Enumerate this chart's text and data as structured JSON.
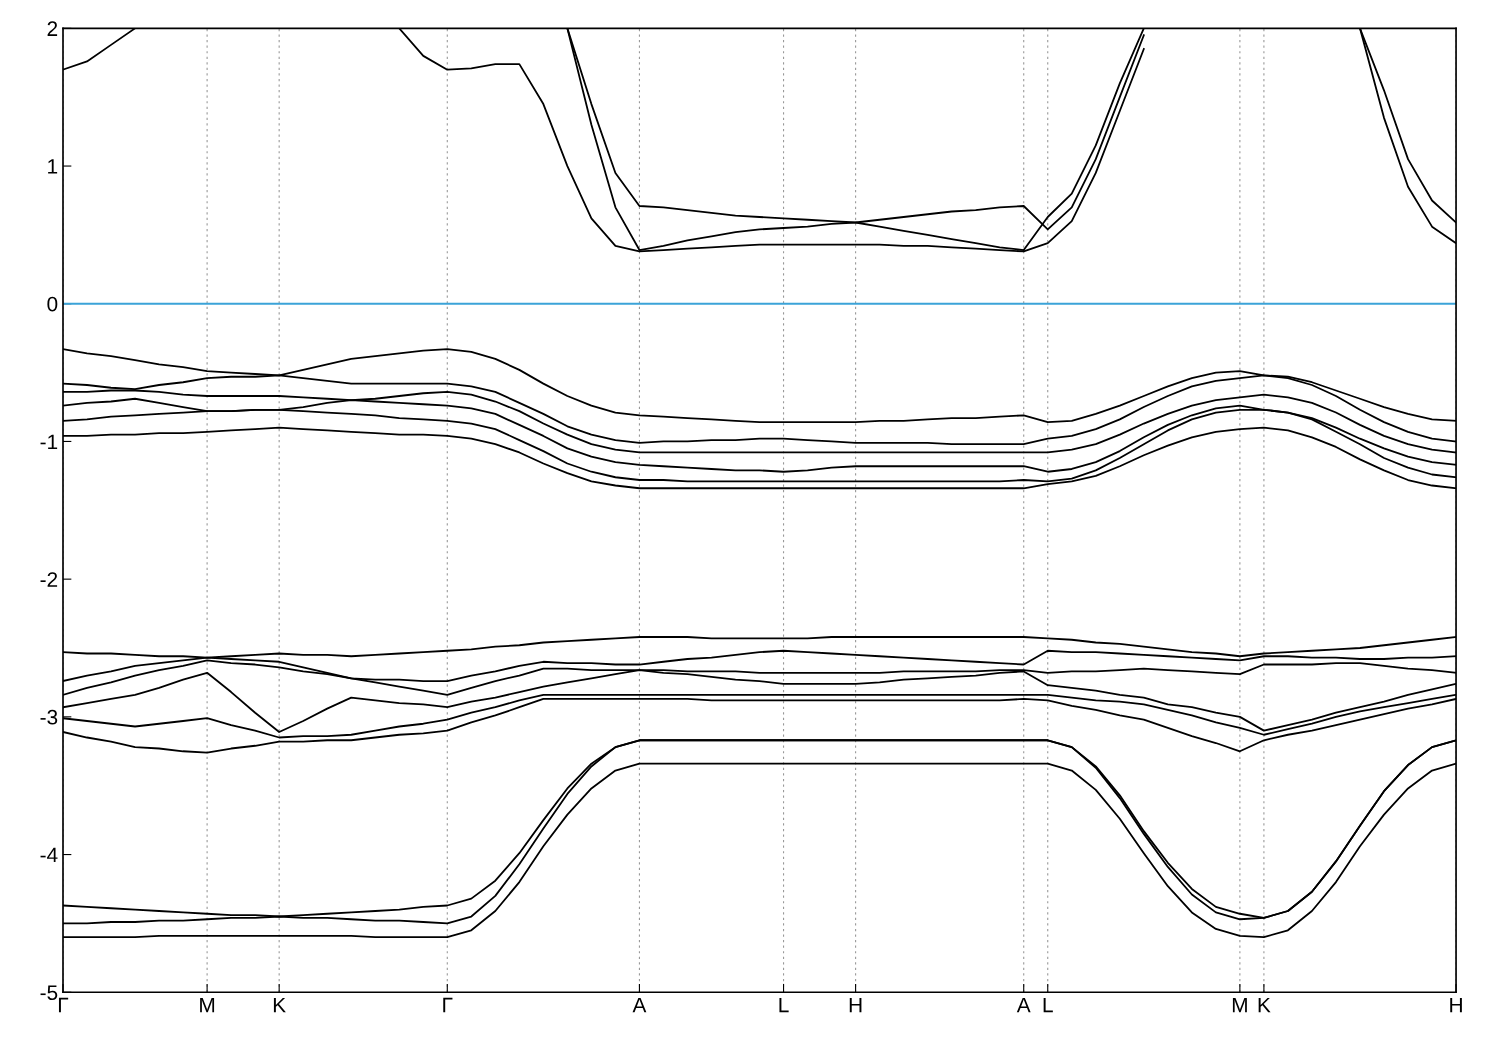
{
  "chart_data": {
    "type": "line",
    "categories": [
      "Γ",
      null,
      null,
      null,
      null,
      null,
      "M",
      null,
      null,
      "K",
      null,
      null,
      null,
      null,
      null,
      null,
      "Γ",
      null,
      null,
      null,
      null,
      null,
      null,
      null,
      "A",
      null,
      null,
      null,
      null,
      null,
      "L",
      null,
      null,
      "H",
      null,
      null,
      null,
      null,
      null,
      null,
      "A",
      "L",
      null,
      null,
      null,
      null,
      null,
      null,
      null,
      "M",
      "K",
      null,
      null,
      null,
      null,
      null,
      null,
      null,
      "H"
    ],
    "ylim": [
      -5,
      2
    ],
    "yticks": [
      -5,
      -4,
      -3,
      -2,
      -1,
      0,
      1,
      2
    ],
    "grid": "x",
    "line_style": "solid",
    "marker": "none",
    "ref_lines": [
      {
        "axis": "y",
        "value": 0,
        "color": "#3ba3d8"
      }
    ],
    "series": [
      {
        "color": "#000000",
        "values": [
          1.7,
          1.76,
          1.88,
          2.0,
          null,
          null,
          null,
          null,
          null,
          null,
          null,
          null,
          null,
          null,
          2.0,
          1.8,
          1.7,
          1.71,
          1.74,
          1.74,
          1.45,
          1.0,
          0.62,
          0.42,
          0.38,
          0.39,
          0.4,
          0.41,
          0.42,
          0.43,
          0.43,
          0.43,
          0.43,
          0.43,
          0.43,
          0.42,
          0.42,
          0.41,
          0.4,
          0.39,
          0.38,
          0.44,
          0.6,
          0.95,
          1.4,
          1.85,
          null,
          null,
          null,
          null,
          null,
          null,
          null,
          null,
          2.0,
          1.35,
          0.85,
          0.56,
          0.44
        ]
      },
      {
        "color": "#000000",
        "values": [
          null,
          null,
          null,
          null,
          null,
          null,
          null,
          null,
          null,
          null,
          null,
          null,
          null,
          null,
          null,
          null,
          null,
          null,
          null,
          null,
          null,
          2.0,
          1.3,
          0.7,
          0.39,
          0.42,
          0.46,
          0.49,
          0.52,
          0.54,
          0.55,
          0.56,
          0.58,
          0.59,
          0.61,
          0.63,
          0.65,
          0.67,
          0.68,
          0.7,
          0.71,
          0.54,
          0.7,
          1.05,
          1.5,
          1.95,
          null,
          null,
          null,
          null,
          null,
          null,
          null,
          null,
          2.0,
          1.55,
          1.05,
          0.75,
          0.59
        ]
      },
      {
        "color": "#000000",
        "values": [
          null,
          null,
          null,
          null,
          null,
          null,
          null,
          null,
          null,
          null,
          null,
          null,
          null,
          null,
          null,
          null,
          null,
          null,
          null,
          null,
          null,
          2.0,
          1.45,
          0.95,
          0.71,
          0.7,
          0.68,
          0.66,
          0.64,
          0.63,
          0.62,
          0.61,
          0.6,
          0.59,
          0.56,
          0.53,
          0.5,
          0.47,
          0.44,
          0.41,
          0.39,
          0.63,
          0.8,
          1.15,
          1.6,
          2.0,
          null,
          null,
          null,
          null,
          null,
          null,
          null,
          null,
          null,
          null,
          null,
          null,
          null
        ]
      },
      {
        "color": "#000000",
        "values": [
          -0.33,
          -0.36,
          -0.38,
          -0.41,
          -0.44,
          -0.46,
          -0.49,
          -0.5,
          -0.51,
          -0.52,
          -0.48,
          -0.44,
          -0.4,
          -0.38,
          -0.36,
          -0.34,
          -0.33,
          -0.35,
          -0.4,
          -0.48,
          -0.58,
          -0.67,
          -0.74,
          -0.79,
          -0.81,
          -0.82,
          -0.83,
          -0.84,
          -0.85,
          -0.86,
          -0.86,
          -0.86,
          -0.86,
          -0.86,
          -0.85,
          -0.85,
          -0.84,
          -0.83,
          -0.83,
          -0.82,
          -0.81,
          -0.86,
          -0.85,
          -0.8,
          -0.74,
          -0.67,
          -0.6,
          -0.54,
          -0.5,
          -0.49,
          -0.52,
          -0.53,
          -0.57,
          -0.63,
          -0.69,
          -0.75,
          -0.8,
          -0.84,
          -0.85
        ]
      },
      {
        "color": "#000000",
        "values": [
          -0.58,
          -0.59,
          -0.61,
          -0.62,
          -0.59,
          -0.57,
          -0.54,
          -0.53,
          -0.53,
          -0.52,
          -0.54,
          -0.56,
          -0.58,
          -0.58,
          -0.58,
          -0.58,
          -0.58,
          -0.6,
          -0.64,
          -0.72,
          -0.8,
          -0.89,
          -0.95,
          -0.99,
          -1.01,
          -1.0,
          -1.0,
          -0.99,
          -0.99,
          -0.98,
          -0.98,
          -0.99,
          -1.0,
          -1.01,
          -1.01,
          -1.01,
          -1.01,
          -1.02,
          -1.02,
          -1.02,
          -1.02,
          -0.98,
          -0.96,
          -0.91,
          -0.84,
          -0.75,
          -0.67,
          -0.6,
          -0.56,
          -0.54,
          -0.52,
          -0.54,
          -0.59,
          -0.67,
          -0.77,
          -0.86,
          -0.93,
          -0.98,
          -1.0
        ]
      },
      {
        "color": "#000000",
        "values": [
          -0.64,
          -0.64,
          -0.63,
          -0.63,
          -0.64,
          -0.66,
          -0.67,
          -0.67,
          -0.67,
          -0.67,
          -0.68,
          -0.69,
          -0.7,
          -0.69,
          -0.67,
          -0.65,
          -0.64,
          -0.66,
          -0.71,
          -0.78,
          -0.87,
          -0.95,
          -1.02,
          -1.06,
          -1.08,
          -1.08,
          -1.08,
          -1.08,
          -1.08,
          -1.08,
          -1.08,
          -1.08,
          -1.08,
          -1.08,
          -1.08,
          -1.08,
          -1.08,
          -1.08,
          -1.08,
          -1.08,
          -1.08,
          -1.08,
          -1.06,
          -1.02,
          -0.95,
          -0.87,
          -0.8,
          -0.74,
          -0.7,
          -0.68,
          -0.66,
          -0.68,
          -0.72,
          -0.79,
          -0.88,
          -0.96,
          -1.02,
          -1.06,
          -1.08
        ]
      },
      {
        "color": "#000000",
        "values": [
          -0.74,
          -0.72,
          -0.71,
          -0.69,
          -0.72,
          -0.75,
          -0.78,
          -0.78,
          -0.77,
          -0.77,
          -0.75,
          -0.72,
          -0.7,
          -0.71,
          -0.72,
          -0.73,
          -0.74,
          -0.76,
          -0.8,
          -0.88,
          -0.96,
          -1.05,
          -1.11,
          -1.15,
          -1.17,
          -1.18,
          -1.19,
          -1.2,
          -1.21,
          -1.21,
          -1.22,
          -1.21,
          -1.19,
          -1.18,
          -1.18,
          -1.18,
          -1.18,
          -1.18,
          -1.18,
          -1.18,
          -1.18,
          -1.22,
          -1.2,
          -1.15,
          -1.07,
          -0.97,
          -0.88,
          -0.81,
          -0.76,
          -0.74,
          -0.77,
          -0.79,
          -0.83,
          -0.9,
          -0.98,
          -1.05,
          -1.11,
          -1.15,
          -1.17
        ]
      },
      {
        "color": "#000000",
        "values": [
          -0.85,
          -0.84,
          -0.82,
          -0.81,
          -0.8,
          -0.79,
          -0.78,
          -0.78,
          -0.77,
          -0.77,
          -0.78,
          -0.79,
          -0.8,
          -0.81,
          -0.83,
          -0.84,
          -0.85,
          -0.87,
          -0.91,
          -0.99,
          -1.07,
          -1.16,
          -1.22,
          -1.26,
          -1.28,
          -1.28,
          -1.29,
          -1.29,
          -1.29,
          -1.29,
          -1.29,
          -1.29,
          -1.29,
          -1.29,
          -1.29,
          -1.29,
          -1.29,
          -1.29,
          -1.29,
          -1.29,
          -1.28,
          -1.29,
          -1.27,
          -1.21,
          -1.12,
          -1.02,
          -0.92,
          -0.84,
          -0.79,
          -0.77,
          -0.77,
          -0.79,
          -0.84,
          -0.93,
          -1.02,
          -1.12,
          -1.19,
          -1.24,
          -1.26
        ]
      },
      {
        "color": "#000000",
        "values": [
          -0.96,
          -0.96,
          -0.95,
          -0.95,
          -0.94,
          -0.94,
          -0.93,
          -0.92,
          -0.91,
          -0.9,
          -0.91,
          -0.92,
          -0.93,
          -0.94,
          -0.95,
          -0.95,
          -0.96,
          -0.98,
          -1.02,
          -1.08,
          -1.16,
          -1.23,
          -1.29,
          -1.32,
          -1.34,
          -1.34,
          -1.34,
          -1.34,
          -1.34,
          -1.34,
          -1.34,
          -1.34,
          -1.34,
          -1.34,
          -1.34,
          -1.34,
          -1.34,
          -1.34,
          -1.34,
          -1.34,
          -1.34,
          -1.31,
          -1.29,
          -1.25,
          -1.18,
          -1.1,
          -1.03,
          -0.97,
          -0.93,
          -0.91,
          -0.9,
          -0.92,
          -0.97,
          -1.04,
          -1.13,
          -1.21,
          -1.28,
          -1.32,
          -1.34
        ]
      },
      {
        "color": "#000000",
        "values": [
          -2.53,
          -2.54,
          -2.54,
          -2.55,
          -2.56,
          -2.56,
          -2.57,
          -2.56,
          -2.55,
          -2.54,
          -2.55,
          -2.55,
          -2.56,
          -2.55,
          -2.54,
          -2.53,
          -2.52,
          -2.51,
          -2.49,
          -2.48,
          -2.46,
          -2.45,
          -2.44,
          -2.43,
          -2.42,
          -2.42,
          -2.42,
          -2.43,
          -2.43,
          -2.43,
          -2.43,
          -2.43,
          -2.42,
          -2.42,
          -2.42,
          -2.42,
          -2.42,
          -2.42,
          -2.42,
          -2.42,
          -2.42,
          -2.43,
          -2.44,
          -2.46,
          -2.47,
          -2.49,
          -2.51,
          -2.53,
          -2.54,
          -2.56,
          -2.54,
          -2.53,
          -2.52,
          -2.51,
          -2.5,
          -2.48,
          -2.46,
          -2.44,
          -2.42
        ]
      },
      {
        "color": "#000000",
        "values": [
          -2.74,
          -2.7,
          -2.67,
          -2.63,
          -2.61,
          -2.59,
          -2.57,
          -2.58,
          -2.59,
          -2.6,
          -2.64,
          -2.68,
          -2.72,
          -2.73,
          -2.73,
          -2.74,
          -2.74,
          -2.7,
          -2.67,
          -2.63,
          -2.6,
          -2.61,
          -2.61,
          -2.62,
          -2.62,
          -2.6,
          -2.58,
          -2.57,
          -2.55,
          -2.53,
          -2.52,
          -2.53,
          -2.54,
          -2.55,
          -2.56,
          -2.57,
          -2.58,
          -2.59,
          -2.6,
          -2.61,
          -2.62,
          -2.52,
          -2.53,
          -2.53,
          -2.54,
          -2.55,
          -2.56,
          -2.57,
          -2.58,
          -2.59,
          -2.56,
          -2.56,
          -2.57,
          -2.57,
          -2.58,
          -2.58,
          -2.57,
          -2.57,
          -2.56
        ]
      },
      {
        "color": "#000000",
        "values": [
          -2.84,
          -2.79,
          -2.75,
          -2.7,
          -2.66,
          -2.63,
          -2.59,
          -2.61,
          -2.62,
          -2.64,
          -2.67,
          -2.69,
          -2.72,
          -2.75,
          -2.78,
          -2.81,
          -2.84,
          -2.79,
          -2.74,
          -2.7,
          -2.65,
          -2.65,
          -2.66,
          -2.66,
          -2.66,
          -2.66,
          -2.67,
          -2.67,
          -2.67,
          -2.68,
          -2.68,
          -2.68,
          -2.68,
          -2.68,
          -2.68,
          -2.67,
          -2.67,
          -2.67,
          -2.67,
          -2.66,
          -2.66,
          -2.68,
          -2.67,
          -2.67,
          -2.66,
          -2.65,
          -2.66,
          -2.67,
          -2.68,
          -2.69,
          -2.62,
          -2.62,
          -2.62,
          -2.61,
          -2.61,
          -2.63,
          -2.65,
          -2.66,
          -2.68
        ]
      },
      {
        "color": "#000000",
        "values": [
          -2.93,
          -2.9,
          -2.87,
          -2.84,
          -2.79,
          -2.73,
          -2.68,
          -2.82,
          -2.97,
          -3.11,
          -3.03,
          -2.94,
          -2.86,
          -2.88,
          -2.9,
          -2.91,
          -2.93,
          -2.89,
          -2.86,
          -2.82,
          -2.78,
          -2.75,
          -2.72,
          -2.69,
          -2.66,
          -2.68,
          -2.69,
          -2.71,
          -2.73,
          -2.74,
          -2.76,
          -2.76,
          -2.76,
          -2.76,
          -2.75,
          -2.73,
          -2.72,
          -2.71,
          -2.7,
          -2.68,
          -2.67,
          -2.77,
          -2.79,
          -2.81,
          -2.84,
          -2.86,
          -2.91,
          -2.93,
          -2.97,
          -3.0,
          -3.1,
          -3.06,
          -3.02,
          -2.97,
          -2.93,
          -2.89,
          -2.84,
          -2.8,
          -2.76
        ]
      },
      {
        "color": "#000000",
        "values": [
          -3.01,
          -3.03,
          -3.05,
          -3.07,
          -3.05,
          -3.03,
          -3.01,
          -3.06,
          -3.1,
          -3.15,
          -3.14,
          -3.14,
          -3.13,
          -3.1,
          -3.07,
          -3.05,
          -3.02,
          -2.97,
          -2.93,
          -2.88,
          -2.84,
          -2.84,
          -2.84,
          -2.84,
          -2.84,
          -2.84,
          -2.84,
          -2.84,
          -2.84,
          -2.84,
          -2.84,
          -2.84,
          -2.84,
          -2.84,
          -2.84,
          -2.84,
          -2.84,
          -2.84,
          -2.84,
          -2.84,
          -2.84,
          -2.84,
          -2.86,
          -2.88,
          -2.89,
          -2.91,
          -2.95,
          -2.99,
          -3.04,
          -3.08,
          -3.13,
          -3.09,
          -3.05,
          -3.0,
          -2.96,
          -2.93,
          -2.9,
          -2.87,
          -2.84
        ]
      },
      {
        "color": "#000000",
        "values": [
          -3.11,
          -3.15,
          -3.18,
          -3.22,
          -3.23,
          -3.25,
          -3.26,
          -3.23,
          -3.21,
          -3.18,
          -3.18,
          -3.17,
          -3.17,
          -3.15,
          -3.13,
          -3.12,
          -3.1,
          -3.04,
          -2.99,
          -2.93,
          -2.87,
          -2.87,
          -2.87,
          -2.87,
          -2.87,
          -2.87,
          -2.87,
          -2.88,
          -2.88,
          -2.88,
          -2.88,
          -2.88,
          -2.88,
          -2.88,
          -2.88,
          -2.88,
          -2.88,
          -2.88,
          -2.88,
          -2.88,
          -2.87,
          -2.88,
          -2.92,
          -2.95,
          -2.99,
          -3.02,
          -3.08,
          -3.14,
          -3.19,
          -3.25,
          -3.17,
          -3.13,
          -3.1,
          -3.06,
          -3.02,
          -2.98,
          -2.94,
          -2.91,
          -2.87
        ]
      },
      {
        "color": "#000000",
        "values": [
          -4.37,
          -4.38,
          -4.39,
          -4.4,
          -4.41,
          -4.42,
          -4.43,
          -4.44,
          -4.44,
          -4.45,
          -4.44,
          -4.43,
          -4.42,
          -4.41,
          -4.4,
          -4.38,
          -4.37,
          -4.32,
          -4.19,
          -3.99,
          -3.75,
          -3.52,
          -3.34,
          -3.22,
          -3.17,
          -3.17,
          -3.17,
          -3.17,
          -3.17,
          -3.17,
          -3.17,
          -3.17,
          -3.17,
          -3.17,
          -3.17,
          -3.17,
          -3.17,
          -3.17,
          -3.17,
          -3.17,
          -3.17,
          -3.17,
          -3.22,
          -3.36,
          -3.57,
          -3.83,
          -4.06,
          -4.25,
          -4.38,
          -4.43,
          -4.46,
          -4.41,
          -4.27,
          -4.05,
          -3.79,
          -3.54,
          -3.35,
          -3.22,
          -3.17
        ]
      },
      {
        "color": "#000000",
        "values": [
          -4.5,
          -4.5,
          -4.49,
          -4.49,
          -4.48,
          -4.48,
          -4.47,
          -4.46,
          -4.46,
          -4.45,
          -4.46,
          -4.46,
          -4.47,
          -4.48,
          -4.48,
          -4.49,
          -4.5,
          -4.45,
          -4.3,
          -4.07,
          -3.81,
          -3.56,
          -3.36,
          -3.22,
          -3.17,
          -3.17,
          -3.17,
          -3.17,
          -3.17,
          -3.17,
          -3.17,
          -3.17,
          -3.17,
          -3.17,
          -3.17,
          -3.17,
          -3.17,
          -3.17,
          -3.17,
          -3.17,
          -3.17,
          -3.17,
          -3.22,
          -3.37,
          -3.59,
          -3.85,
          -4.09,
          -4.29,
          -4.42,
          -4.47,
          -4.46,
          -4.41,
          -4.27,
          -4.05,
          -3.79,
          -3.54,
          -3.35,
          -3.22,
          -3.17
        ]
      },
      {
        "color": "#000000",
        "values": [
          -4.6,
          -4.6,
          -4.6,
          -4.6,
          -4.59,
          -4.59,
          -4.59,
          -4.59,
          -4.59,
          -4.59,
          -4.59,
          -4.59,
          -4.59,
          -4.6,
          -4.6,
          -4.6,
          -4.6,
          -4.55,
          -4.41,
          -4.2,
          -3.94,
          -3.71,
          -3.52,
          -3.39,
          -3.34,
          -3.34,
          -3.34,
          -3.34,
          -3.34,
          -3.34,
          -3.34,
          -3.34,
          -3.34,
          -3.34,
          -3.34,
          -3.34,
          -3.34,
          -3.34,
          -3.34,
          -3.34,
          -3.34,
          -3.34,
          -3.39,
          -3.53,
          -3.74,
          -3.99,
          -4.23,
          -4.42,
          -4.54,
          -4.59,
          -4.6,
          -4.55,
          -4.41,
          -4.2,
          -3.94,
          -3.71,
          -3.52,
          -3.39,
          -3.34
        ]
      }
    ]
  }
}
